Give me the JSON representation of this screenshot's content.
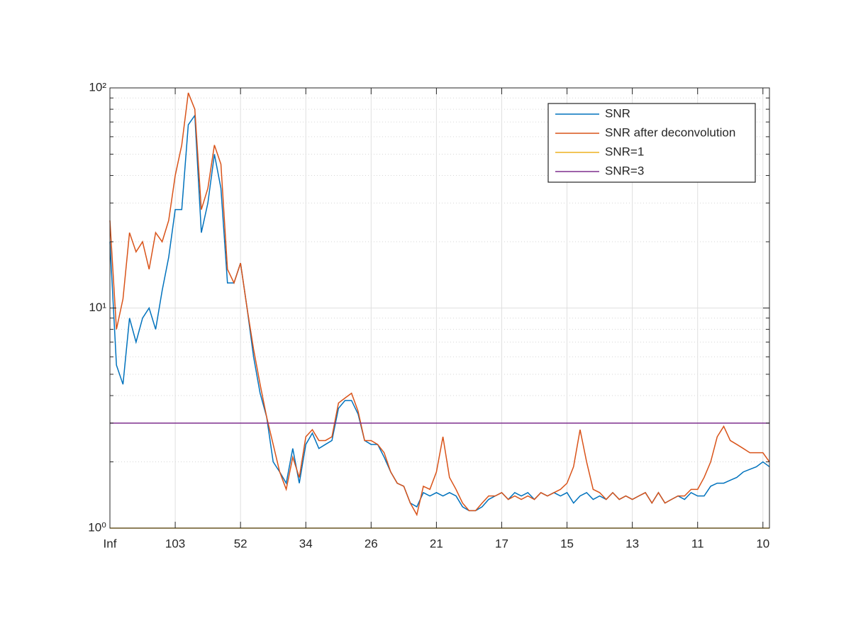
{
  "chart_data": {
    "type": "line",
    "x": [
      0,
      1,
      2,
      3,
      4,
      5,
      6,
      7,
      8,
      9,
      10,
      11,
      12,
      13,
      14,
      15,
      16,
      17,
      18,
      19,
      20,
      21,
      22,
      23,
      24,
      25,
      26,
      27,
      28,
      29,
      30,
      31,
      32,
      33,
      34,
      35,
      36,
      37,
      38,
      39,
      40,
      41,
      42,
      43,
      44,
      45,
      46,
      47,
      48,
      49,
      50,
      51,
      52,
      53,
      54,
      55,
      56,
      57,
      58,
      59,
      60,
      61,
      62,
      63,
      64,
      65,
      66,
      67,
      68,
      69,
      70,
      71,
      72,
      73,
      74,
      75,
      76,
      77,
      78,
      79,
      80,
      81,
      82,
      83,
      84,
      85,
      86,
      87,
      88,
      89,
      90,
      91,
      92,
      93,
      94,
      95,
      96,
      97,
      98,
      99,
      100,
      101
    ],
    "series": [
      {
        "name": "SNR",
        "color": "#0072bd",
        "values": [
          20,
          5.5,
          4.5,
          9,
          7,
          9,
          10,
          8,
          12,
          17,
          28,
          28,
          68,
          75,
          22,
          30,
          50,
          35,
          13,
          13,
          16,
          10,
          6,
          4.1,
          3.2,
          2,
          1.8,
          1.6,
          2.3,
          1.6,
          2.4,
          2.7,
          2.3,
          2.4,
          2.5,
          3.5,
          3.8,
          3.8,
          3.3,
          2.5,
          2.4,
          2.4,
          2.1,
          1.8,
          1.6,
          1.55,
          1.3,
          1.25,
          1.45,
          1.4,
          1.45,
          1.4,
          1.45,
          1.4,
          1.25,
          1.2,
          1.2,
          1.25,
          1.35,
          1.4,
          1.45,
          1.35,
          1.45,
          1.4,
          1.45,
          1.35,
          1.45,
          1.4,
          1.45,
          1.4,
          1.45,
          1.3,
          1.4,
          1.45,
          1.35,
          1.4,
          1.35,
          1.45,
          1.35,
          1.4,
          1.35,
          1.4,
          1.45,
          1.3,
          1.45,
          1.3,
          1.35,
          1.4,
          1.35,
          1.45,
          1.4,
          1.4,
          1.55,
          1.6,
          1.6,
          1.65,
          1.7,
          1.8,
          1.85,
          1.9,
          2.0,
          1.9
        ]
      },
      {
        "name": "SNR after deconvolution",
        "color": "#d95319",
        "values": [
          25,
          8,
          11,
          22,
          18,
          20,
          15,
          22,
          20,
          25,
          40,
          55,
          95,
          80,
          28,
          35,
          55,
          45,
          15,
          13,
          16,
          10,
          6.5,
          4.5,
          3.2,
          2.4,
          1.8,
          1.5,
          2.1,
          1.7,
          2.6,
          2.8,
          2.5,
          2.5,
          2.6,
          3.7,
          3.9,
          4.1,
          3.4,
          2.5,
          2.5,
          2.4,
          2.2,
          1.8,
          1.6,
          1.55,
          1.3,
          1.15,
          1.55,
          1.5,
          1.8,
          2.6,
          1.7,
          1.5,
          1.3,
          1.2,
          1.2,
          1.3,
          1.4,
          1.4,
          1.45,
          1.35,
          1.4,
          1.35,
          1.4,
          1.35,
          1.45,
          1.4,
          1.45,
          1.5,
          1.6,
          1.9,
          2.8,
          2.0,
          1.5,
          1.45,
          1.35,
          1.45,
          1.35,
          1.4,
          1.35,
          1.4,
          1.45,
          1.3,
          1.45,
          1.3,
          1.35,
          1.4,
          1.4,
          1.5,
          1.5,
          1.7,
          2.0,
          2.6,
          2.9,
          2.5,
          2.4,
          2.3,
          2.2,
          2.2,
          2.2,
          2.0
        ]
      },
      {
        "name": "SNR=1",
        "color": "#edb120",
        "x": [
          0,
          101
        ],
        "values": [
          1,
          1
        ]
      },
      {
        "name": "SNR=3",
        "color": "#7e2f8e",
        "x": [
          0,
          101
        ],
        "values": [
          3,
          3
        ]
      }
    ],
    "xlim": [
      0,
      101
    ],
    "xticks": [
      {
        "value": 0,
        "label": "Inf"
      },
      {
        "value": 10,
        "label": "103"
      },
      {
        "value": 20,
        "label": "52"
      },
      {
        "value": 30,
        "label": "34"
      },
      {
        "value": 40,
        "label": "26"
      },
      {
        "value": 50,
        "label": "21"
      },
      {
        "value": 60,
        "label": "17"
      },
      {
        "value": 70,
        "label": "15"
      },
      {
        "value": 80,
        "label": "13"
      },
      {
        "value": 90,
        "label": "11"
      },
      {
        "value": 100,
        "label": "10"
      }
    ],
    "ylim": [
      1,
      100
    ],
    "ylog": true,
    "yticks": [
      {
        "value": 1,
        "label": "10⁰"
      },
      {
        "value": 10,
        "label": "10¹"
      },
      {
        "value": 100,
        "label": "10²"
      }
    ],
    "yminorticks": [
      2,
      3,
      4,
      5,
      6,
      7,
      8,
      9,
      20,
      30,
      40,
      50,
      60,
      70,
      80,
      90
    ],
    "grid": true,
    "legend": "top-right"
  }
}
